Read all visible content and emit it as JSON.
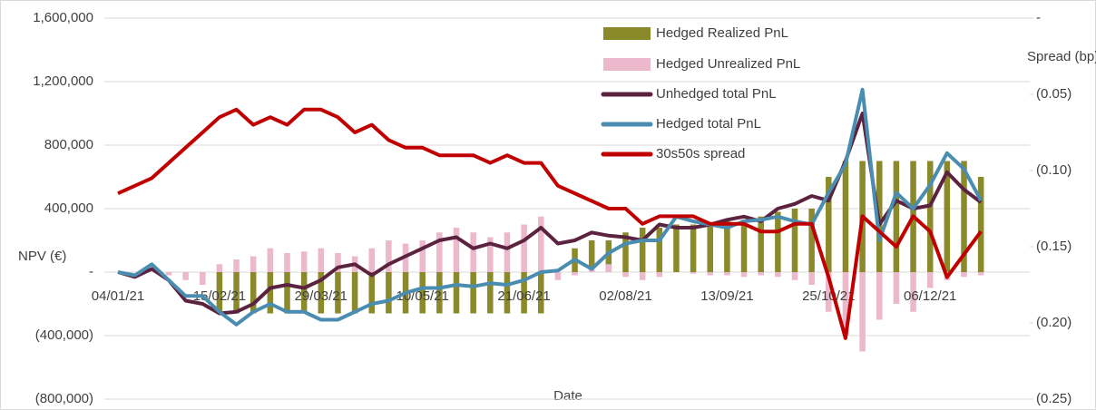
{
  "chart_data": {
    "type": "combo",
    "x_label": "Date",
    "y_label": "NPV (€)",
    "y2_label": "Spread (bp)",
    "categories": [
      "04/01/21",
      null,
      null,
      null,
      null,
      null,
      "15/02/21",
      null,
      null,
      null,
      null,
      null,
      "29/03/21",
      null,
      null,
      null,
      null,
      null,
      "10/05/21",
      null,
      null,
      null,
      null,
      null,
      "21/06/21",
      null,
      null,
      null,
      null,
      null,
      "02/08/21",
      null,
      null,
      null,
      null,
      null,
      "13/09/21",
      null,
      null,
      null,
      null,
      null,
      "25/10/21",
      null,
      null,
      null,
      null,
      null,
      "06/12/21",
      null,
      null,
      null
    ],
    "ylim": [
      -800000,
      1600000
    ],
    "yticks": [
      {
        "value": -800000,
        "label": "(800,000)"
      },
      {
        "value": -400000,
        "label": "(400,000)"
      },
      {
        "value": 0,
        "label": "-"
      },
      {
        "value": 400000,
        "label": "400,000"
      },
      {
        "value": 800000,
        "label": "800,000"
      },
      {
        "value": 1200000,
        "label": "1,200,000"
      },
      {
        "value": 1600000,
        "label": "1,600,000"
      }
    ],
    "y2lim": [
      -0.25,
      0
    ],
    "y2ticks": [
      {
        "value": -0.25,
        "label": "(0.25)"
      },
      {
        "value": -0.2,
        "label": "(0.20)"
      },
      {
        "value": -0.15,
        "label": "(0.15)"
      },
      {
        "value": -0.1,
        "label": "(0.10)"
      },
      {
        "value": -0.05,
        "label": "(0.05)"
      },
      {
        "value": 0,
        "label": "-"
      }
    ],
    "grid": true,
    "series": [
      {
        "name": "Hedged Realized PnL",
        "type": "bar",
        "color": "#8a8a2a",
        "values": [
          0,
          0,
          0,
          0,
          0,
          0,
          -260000,
          -260000,
          -260000,
          -260000,
          -260000,
          -260000,
          -260000,
          -260000,
          -260000,
          -260000,
          -260000,
          -260000,
          -260000,
          -260000,
          -260000,
          -260000,
          -260000,
          -260000,
          -260000,
          -260000,
          0,
          150000,
          200000,
          200000,
          250000,
          280000,
          280000,
          300000,
          300000,
          300000,
          320000,
          330000,
          350000,
          380000,
          400000,
          400000,
          600000,
          700000,
          700000,
          700000,
          700000,
          700000,
          700000,
          700000,
          700000,
          600000
        ]
      },
      {
        "name": "Hedged Unrealized PnL",
        "type": "bar",
        "color": "#ebb8cc",
        "values": [
          0,
          0,
          0,
          -20000,
          -50000,
          -80000,
          50000,
          80000,
          100000,
          150000,
          120000,
          130000,
          150000,
          120000,
          100000,
          150000,
          200000,
          180000,
          200000,
          250000,
          280000,
          250000,
          220000,
          250000,
          300000,
          350000,
          -50000,
          -20000,
          30000,
          50000,
          -30000,
          -50000,
          -30000,
          0,
          -10000,
          -20000,
          -20000,
          -30000,
          -20000,
          -30000,
          -50000,
          -80000,
          -250000,
          -400000,
          -500000,
          -300000,
          -200000,
          -250000,
          -100000,
          -50000,
          -30000,
          -20000
        ]
      },
      {
        "name": "Unhedged total PnL",
        "type": "line",
        "color": "#5c2341",
        "values": [
          0,
          -30000,
          20000,
          -50000,
          -180000,
          -200000,
          -260000,
          -250000,
          -200000,
          -100000,
          -80000,
          -100000,
          -50000,
          30000,
          50000,
          -20000,
          50000,
          100000,
          150000,
          200000,
          220000,
          150000,
          180000,
          150000,
          200000,
          280000,
          180000,
          200000,
          250000,
          230000,
          220000,
          200000,
          300000,
          280000,
          280000,
          300000,
          330000,
          350000,
          320000,
          400000,
          430000,
          480000,
          450000,
          700000,
          1000000,
          300000,
          450000,
          400000,
          420000,
          630000,
          520000,
          440000
        ]
      },
      {
        "name": "Hedged total PnL",
        "type": "line",
        "color": "#4a8db0",
        "values": [
          0,
          -20000,
          50000,
          -50000,
          -150000,
          -150000,
          -250000,
          -330000,
          -250000,
          -200000,
          -250000,
          -250000,
          -300000,
          -300000,
          -250000,
          -200000,
          -180000,
          -130000,
          -100000,
          -100000,
          -80000,
          -90000,
          -70000,
          -80000,
          -50000,
          0,
          10000,
          80000,
          20000,
          120000,
          180000,
          200000,
          200000,
          350000,
          320000,
          300000,
          280000,
          320000,
          330000,
          350000,
          320000,
          300000,
          500000,
          680000,
          1150000,
          200000,
          500000,
          400000,
          550000,
          750000,
          650000,
          450000
        ]
      },
      {
        "name": "30s50s spread",
        "type": "line",
        "axis": "y2",
        "color": "#c00000",
        "values": [
          -0.115,
          -0.11,
          -0.105,
          -0.095,
          -0.085,
          -0.075,
          -0.065,
          -0.06,
          -0.07,
          -0.065,
          -0.07,
          -0.06,
          -0.06,
          -0.065,
          -0.075,
          -0.07,
          -0.08,
          -0.085,
          -0.085,
          -0.09,
          -0.09,
          -0.09,
          -0.095,
          -0.09,
          -0.095,
          -0.095,
          -0.11,
          -0.115,
          -0.12,
          -0.125,
          -0.125,
          -0.135,
          -0.13,
          -0.13,
          -0.13,
          -0.135,
          -0.135,
          -0.135,
          -0.14,
          -0.14,
          -0.135,
          -0.135,
          -0.17,
          -0.21,
          -0.13,
          -0.14,
          -0.15,
          -0.13,
          -0.14,
          -0.17,
          -0.155,
          -0.14
        ]
      }
    ]
  }
}
